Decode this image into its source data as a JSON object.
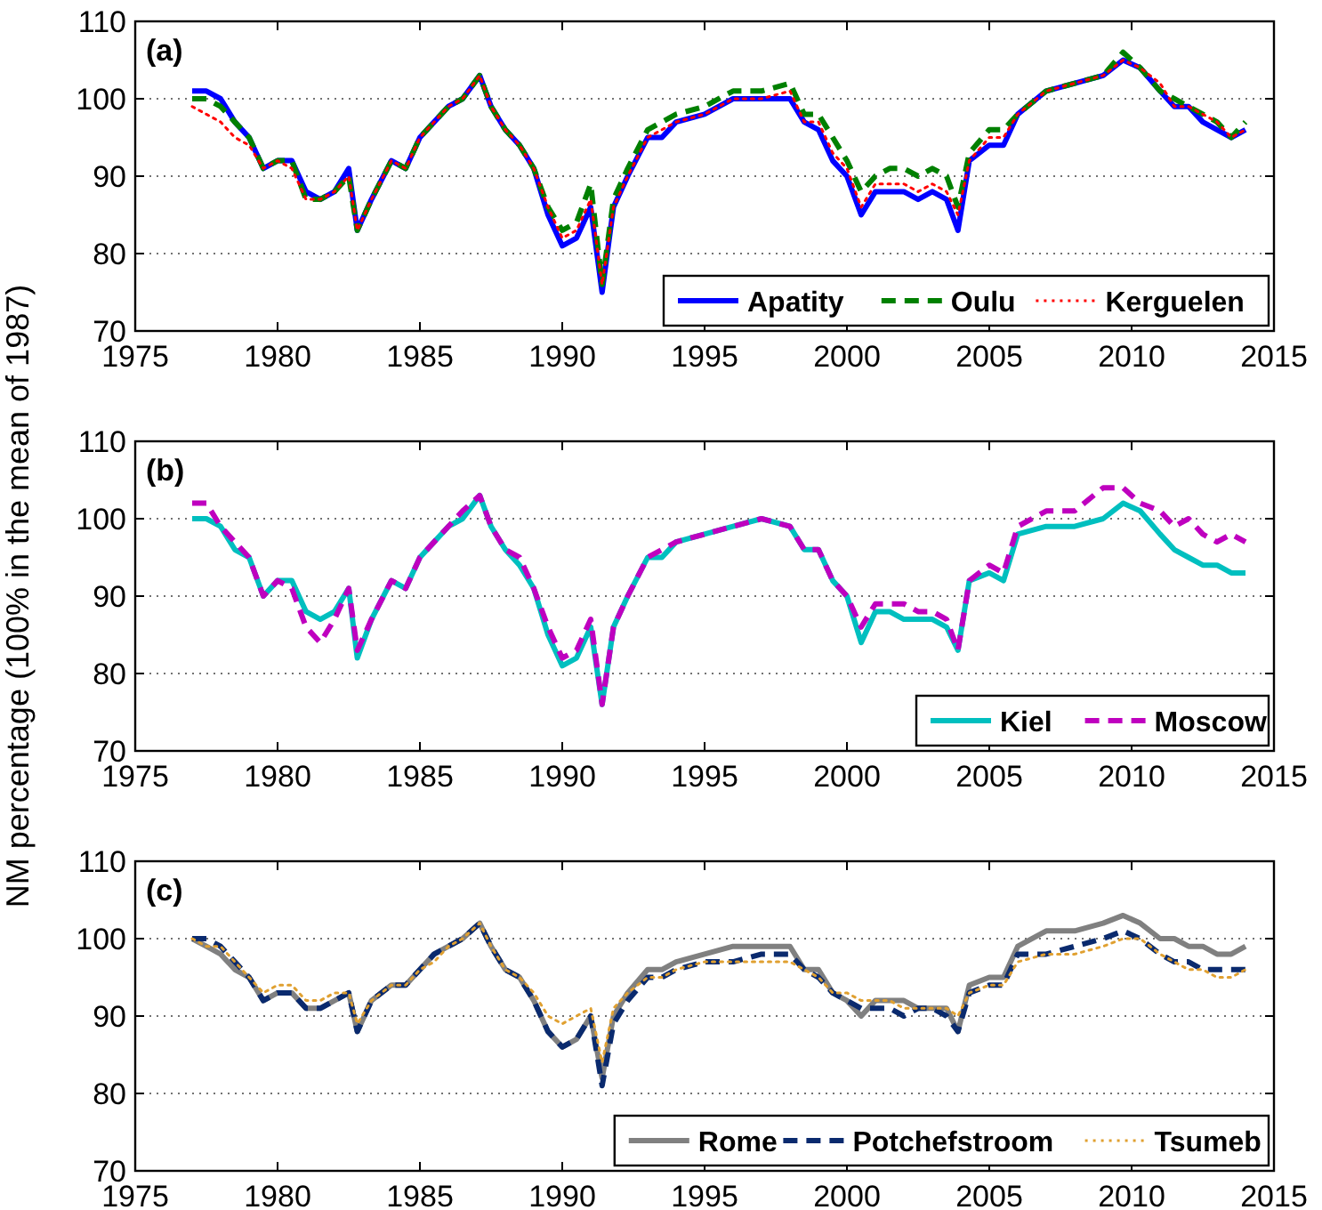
{
  "chart_data": [
    {
      "type": "line",
      "title": "(a)",
      "x": [
        1977,
        1977.5,
        1978,
        1978.5,
        1979,
        1979.5,
        1980,
        1980.5,
        1981,
        1981.5,
        1982,
        1982.5,
        1982.8,
        1983.3,
        1984,
        1984.5,
        1985,
        1985.5,
        1986,
        1986.5,
        1987.1,
        1987.5,
        1988,
        1988.5,
        1989,
        1989.5,
        1990,
        1990.5,
        1991,
        1991.4,
        1991.8,
        1992.3,
        1993,
        1993.5,
        1994,
        1995,
        1996,
        1997,
        1998,
        1998.5,
        1999,
        1999.5,
        2000,
        2000.5,
        2001,
        2001.5,
        2002,
        2002.5,
        2003,
        2003.5,
        2003.9,
        2004.3,
        2005,
        2005.5,
        2006,
        2007,
        2008,
        2009,
        2009.7,
        2010.3,
        2011,
        2011.5,
        2012,
        2012.5,
        2013,
        2013.5,
        2014
      ],
      "series": [
        {
          "name": "Apatity",
          "color": "#0000ff",
          "line_style": "solid",
          "values": [
            101,
            101,
            100,
            97,
            95,
            91,
            92,
            92,
            88,
            87,
            88,
            91,
            83,
            87,
            92,
            91,
            95,
            97,
            99,
            100,
            103,
            99,
            96,
            94,
            91,
            85,
            81,
            82,
            86,
            75,
            86,
            90,
            95,
            95,
            97,
            98,
            100,
            100,
            100,
            97,
            96,
            92,
            90,
            85,
            88,
            88,
            88,
            87,
            88,
            87,
            83,
            92,
            94,
            94,
            98,
            101,
            102,
            103,
            105,
            104,
            101,
            99,
            99,
            97,
            96,
            95,
            96
          ]
        },
        {
          "name": "Oulu",
          "color": "#008000",
          "line_style": "dashed",
          "values": [
            100,
            100,
            99,
            97,
            95,
            91,
            92,
            92,
            87,
            87,
            88,
            90,
            83,
            87,
            92,
            91,
            95,
            97,
            99,
            100,
            103,
            99,
            96,
            94,
            91,
            86,
            83,
            84,
            89,
            76,
            87,
            91,
            96,
            97,
            98,
            99,
            101,
            101,
            102,
            98,
            98,
            95,
            92,
            88,
            90,
            91,
            91,
            90,
            91,
            90,
            86,
            93,
            96,
            96,
            98,
            101,
            102,
            103,
            106,
            104,
            101,
            100,
            99,
            98,
            97,
            95,
            97
          ]
        },
        {
          "name": "Kerguelen",
          "color": "#ff0000",
          "line_style": "dotted",
          "values": [
            99,
            98,
            97,
            95,
            94,
            91,
            92,
            91,
            87,
            87,
            88,
            90,
            83,
            87,
            92,
            91,
            95,
            97,
            99,
            100,
            103,
            99,
            96,
            94,
            91,
            86,
            82,
            83,
            87,
            76,
            86,
            90,
            95,
            96,
            97,
            98,
            100,
            100,
            101,
            97,
            97,
            93,
            91,
            86,
            89,
            89,
            89,
            88,
            89,
            88,
            85,
            92,
            95,
            95,
            98,
            101,
            102,
            103,
            105,
            104,
            102,
            99,
            99,
            98,
            97,
            95,
            96
          ]
        }
      ],
      "xlim": [
        1975,
        2015
      ],
      "xticks": [
        1975,
        1980,
        1985,
        1990,
        1995,
        2000,
        2005,
        2010,
        2015
      ],
      "ylim": [
        70,
        110
      ],
      "yticks": [
        70,
        80,
        90,
        100,
        110
      ],
      "grid": "y",
      "legend": "bottom right"
    },
    {
      "type": "line",
      "title": "(b)",
      "ylabel": "NM percentage (100% in the mean of 1987)",
      "x": [
        1977,
        1977.5,
        1978,
        1978.5,
        1979,
        1979.5,
        1980,
        1980.5,
        1981,
        1981.5,
        1982,
        1982.5,
        1982.8,
        1983.3,
        1984,
        1984.5,
        1985,
        1985.5,
        1986,
        1986.5,
        1987.1,
        1987.5,
        1988,
        1988.5,
        1989,
        1989.5,
        1990,
        1990.5,
        1991,
        1991.4,
        1991.8,
        1992.3,
        1993,
        1993.5,
        1994,
        1995,
        1996,
        1997,
        1998,
        1998.5,
        1999,
        1999.5,
        2000,
        2000.5,
        2001,
        2001.5,
        2002,
        2002.5,
        2003,
        2003.5,
        2003.9,
        2004.3,
        2005,
        2005.5,
        2006,
        2007,
        2008,
        2009,
        2009.7,
        2010.3,
        2011,
        2011.5,
        2012,
        2012.5,
        2013,
        2013.5,
        2014
      ],
      "series": [
        {
          "name": "Kiel",
          "color": "#00bfbf",
          "line_style": "solid",
          "values": [
            100,
            100,
            99,
            96,
            95,
            90,
            92,
            92,
            88,
            87,
            88,
            91,
            82,
            87,
            92,
            91,
            95,
            97,
            99,
            100,
            103,
            99,
            96,
            94,
            91,
            85,
            81,
            82,
            86,
            76,
            86,
            90,
            95,
            95,
            97,
            98,
            99,
            100,
            99,
            96,
            96,
            92,
            90,
            84,
            88,
            88,
            87,
            87,
            87,
            86,
            83,
            92,
            93,
            92,
            98,
            99,
            99,
            100,
            102,
            101,
            98,
            96,
            95,
            94,
            94,
            93,
            93
          ]
        },
        {
          "name": "Moscow",
          "color": "#bf00bf",
          "line_style": "dashed",
          "values": [
            102,
            102,
            99,
            97,
            95,
            90,
            92,
            91,
            86,
            84,
            87,
            91,
            83,
            87,
            92,
            91,
            95,
            97,
            99,
            101,
            103,
            99,
            96,
            95,
            91,
            86,
            82,
            83,
            87,
            76,
            86,
            90,
            95,
            96,
            97,
            98,
            99,
            100,
            99,
            96,
            96,
            92,
            90,
            86,
            89,
            89,
            89,
            88,
            88,
            87,
            83,
            92,
            94,
            93,
            99,
            101,
            101,
            104,
            104,
            102,
            101,
            99,
            100,
            98,
            97,
            98,
            97
          ]
        }
      ],
      "xlim": [
        1975,
        2015
      ],
      "xticks": [
        1975,
        1980,
        1985,
        1990,
        1995,
        2000,
        2005,
        2010,
        2015
      ],
      "ylim": [
        70,
        110
      ],
      "yticks": [
        70,
        80,
        90,
        100,
        110
      ],
      "grid": "y",
      "legend": "bottom right"
    },
    {
      "type": "line",
      "title": "(c)",
      "x": [
        1977,
        1977.5,
        1978,
        1978.5,
        1979,
        1979.5,
        1980,
        1980.5,
        1981,
        1981.5,
        1982,
        1982.5,
        1982.8,
        1983.3,
        1984,
        1984.5,
        1985,
        1985.5,
        1986,
        1986.5,
        1987.1,
        1987.5,
        1988,
        1988.5,
        1989,
        1989.5,
        1990,
        1990.5,
        1991,
        1991.4,
        1991.8,
        1992.3,
        1993,
        1993.5,
        1994,
        1995,
        1996,
        1997,
        1998,
        1998.5,
        1999,
        1999.5,
        2000,
        2000.5,
        2001,
        2001.5,
        2002,
        2002.5,
        2003,
        2003.5,
        2003.9,
        2004.3,
        2005,
        2005.5,
        2006,
        2007,
        2008,
        2009,
        2009.7,
        2010.3,
        2011,
        2011.5,
        2012,
        2012.5,
        2013,
        2013.5,
        2014
      ],
      "series": [
        {
          "name": "Rome",
          "color": "#808080",
          "line_style": "solid",
          "values": [
            100,
            99,
            98,
            96,
            95,
            92,
            93,
            93,
            91,
            91,
            92,
            93,
            88,
            92,
            94,
            94,
            96,
            98,
            99,
            100,
            102,
            99,
            96,
            95,
            92,
            88,
            86,
            87,
            90,
            82,
            90,
            93,
            96,
            96,
            97,
            98,
            99,
            99,
            99,
            96,
            96,
            93,
            92,
            90,
            92,
            92,
            92,
            91,
            91,
            91,
            88,
            94,
            95,
            95,
            99,
            101,
            101,
            102,
            103,
            102,
            100,
            100,
            99,
            99,
            98,
            98,
            99
          ]
        },
        {
          "name": "Potchefstroom",
          "color": "#0a2a6e",
          "line_style": "dashed",
          "values": [
            100,
            100,
            99,
            97,
            95,
            92,
            93,
            93,
            91,
            91,
            92,
            93,
            88,
            92,
            94,
            94,
            96,
            98,
            99,
            100,
            102,
            99,
            96,
            95,
            92,
            88,
            86,
            87,
            90,
            81,
            89,
            92,
            95,
            95,
            96,
            97,
            97,
            98,
            98,
            96,
            95,
            93,
            92,
            91,
            91,
            91,
            90,
            91,
            91,
            90,
            88,
            93,
            94,
            94,
            98,
            98,
            99,
            100,
            101,
            100,
            98,
            97,
            97,
            96,
            96,
            96,
            96
          ]
        },
        {
          "name": "Tsumeb",
          "color": "#e0a030",
          "line_style": "dotted",
          "values": [
            100,
            99,
            99,
            97,
            95,
            93,
            94,
            94,
            92,
            92,
            93,
            93,
            89,
            92,
            94,
            94,
            96,
            97,
            99,
            100,
            102,
            99,
            96,
            95,
            93,
            90,
            89,
            90,
            91,
            84,
            91,
            93,
            95,
            95,
            96,
            97,
            97,
            97,
            97,
            96,
            95,
            93,
            93,
            92,
            92,
            92,
            91,
            91,
            91,
            91,
            90,
            93,
            94,
            94,
            97,
            98,
            98,
            99,
            100,
            100,
            98,
            97,
            96,
            96,
            95,
            95,
            96
          ]
        }
      ],
      "xlim": [
        1975,
        2015
      ],
      "xticks": [
        1975,
        1980,
        1985,
        1990,
        1995,
        2000,
        2005,
        2010,
        2015
      ],
      "ylim": [
        70,
        110
      ],
      "yticks": [
        70,
        80,
        90,
        100,
        110
      ],
      "grid": "y",
      "legend": "bottom right"
    }
  ]
}
